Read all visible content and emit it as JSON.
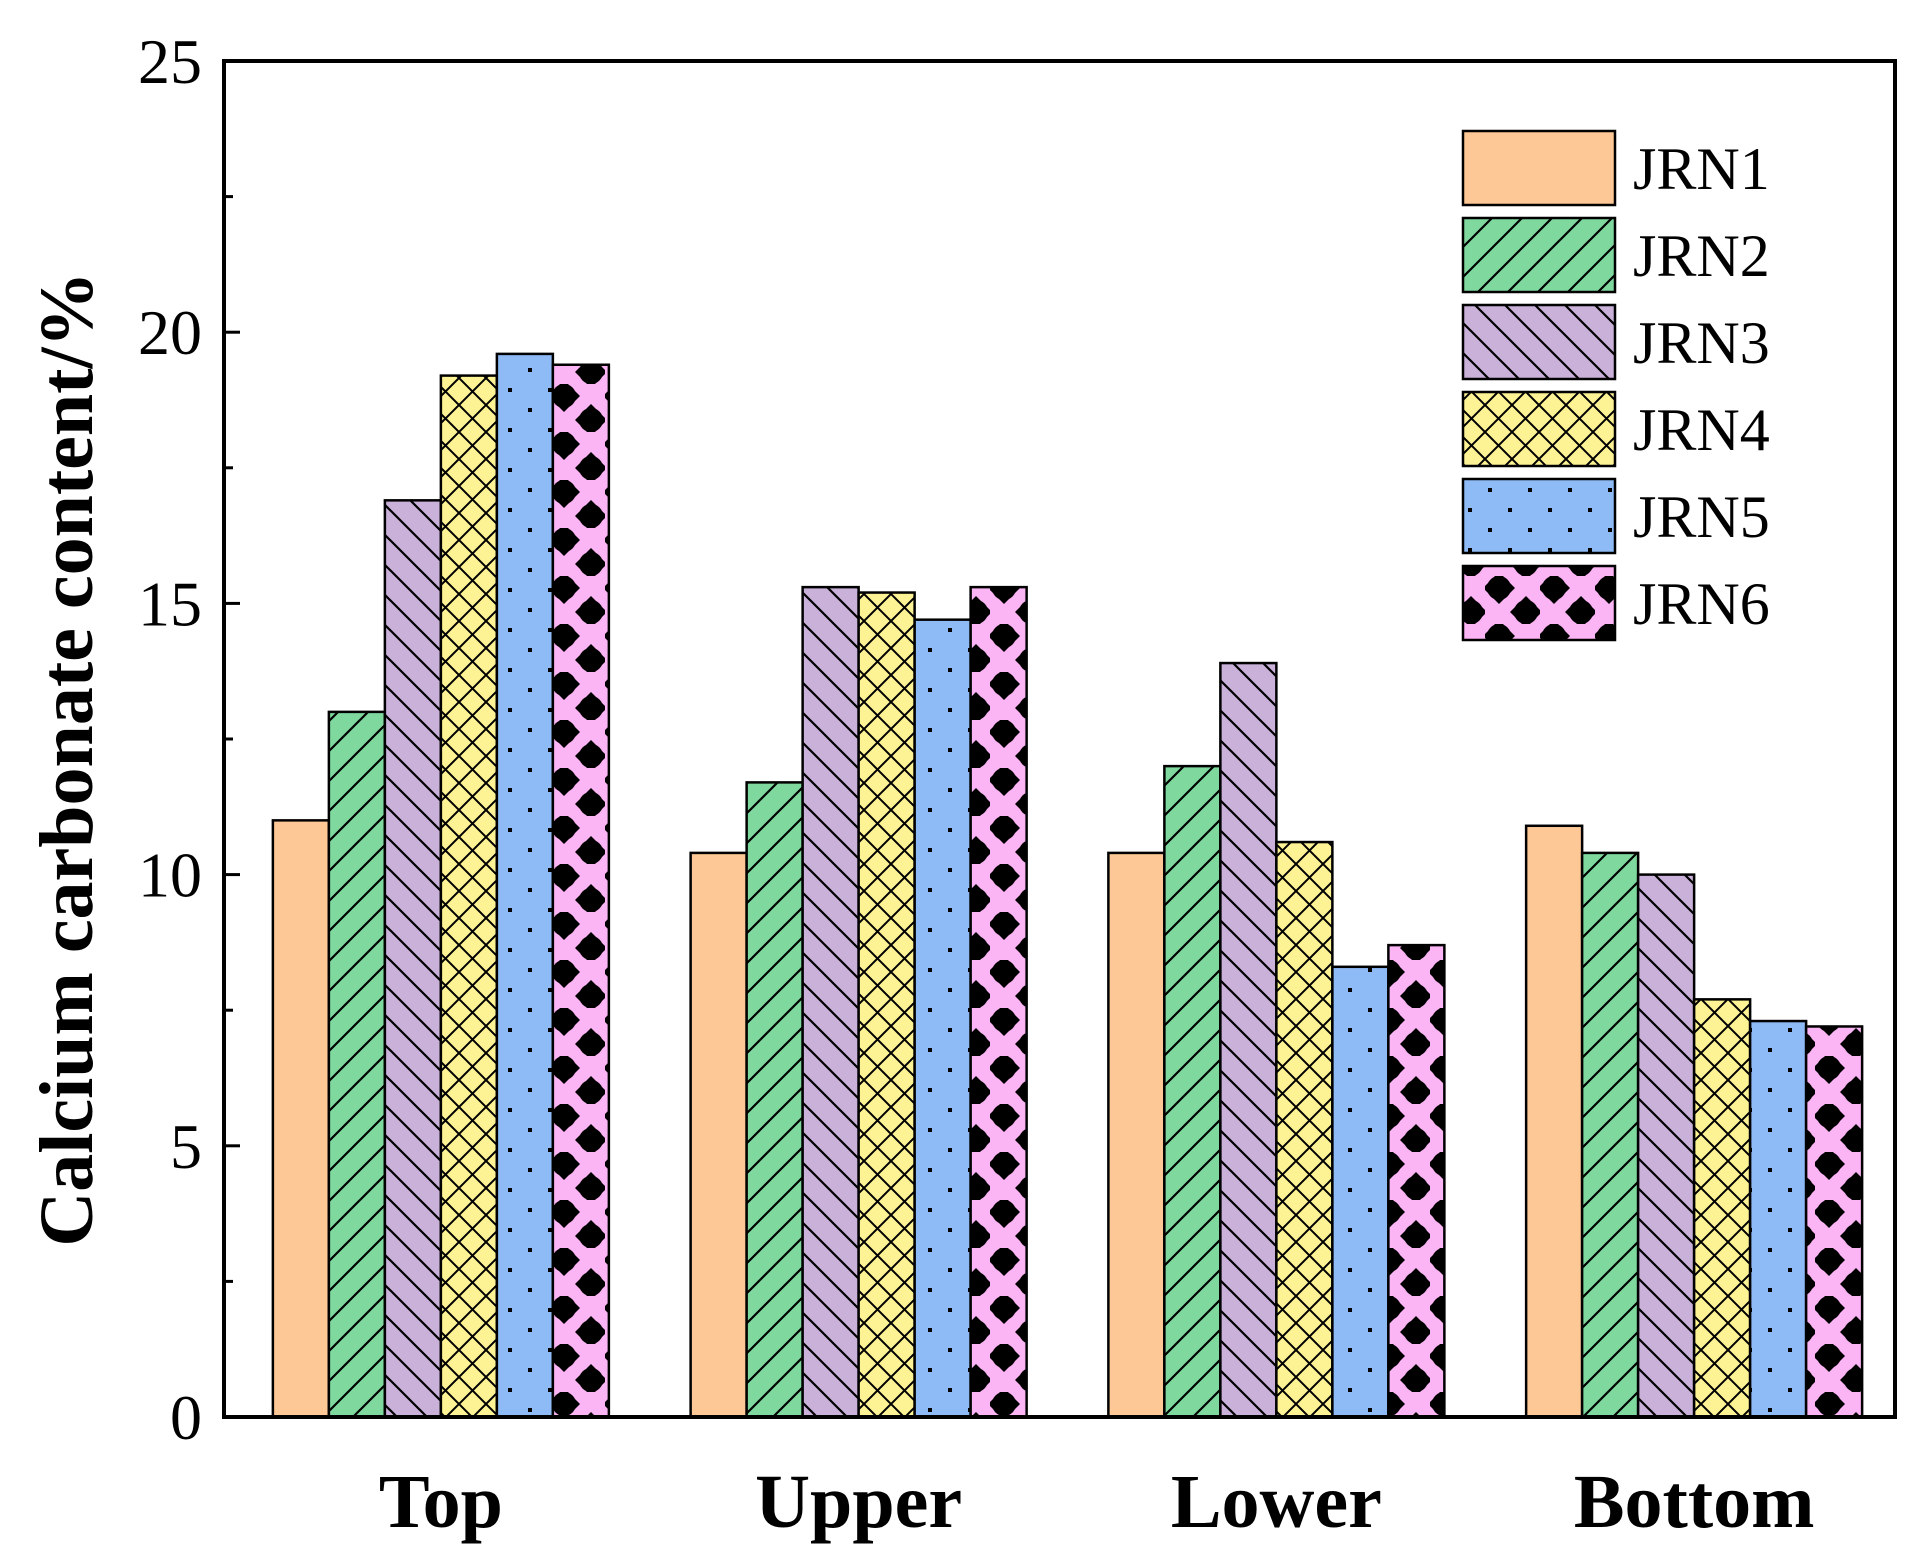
{
  "chart_data": {
    "type": "bar",
    "title": "",
    "xlabel": "",
    "ylabel": "Calcium carbonate content/%",
    "ylim": [
      0,
      25
    ],
    "yticks": [
      0,
      5,
      10,
      15,
      20,
      25
    ],
    "grid": false,
    "legend_position": "top-right",
    "categories": [
      "Top",
      "Upper",
      "Lower",
      "Bottom"
    ],
    "series": [
      {
        "name": "JRN1",
        "values": [
          11.0,
          10.4,
          10.4,
          10.9
        ],
        "color": "#FDC896",
        "pattern": "solid"
      },
      {
        "name": "JRN2",
        "values": [
          13.0,
          11.7,
          12.0,
          10.4
        ],
        "color": "#7FD99E",
        "pattern": "diagonal-forward"
      },
      {
        "name": "JRN3",
        "values": [
          16.9,
          15.3,
          13.9,
          10.0
        ],
        "color": "#C9B1D9",
        "pattern": "diagonal-back"
      },
      {
        "name": "JRN4",
        "values": [
          19.2,
          15.2,
          10.6,
          7.7
        ],
        "color": "#FDF294",
        "pattern": "crosshatch"
      },
      {
        "name": "JRN5",
        "values": [
          19.6,
          14.7,
          8.3,
          7.3
        ],
        "color": "#8EBAF5",
        "pattern": "dots"
      },
      {
        "name": "JRN6",
        "values": [
          19.4,
          15.3,
          8.7,
          7.2
        ],
        "color": "#FBB4F4",
        "pattern": "diamonds"
      }
    ]
  }
}
